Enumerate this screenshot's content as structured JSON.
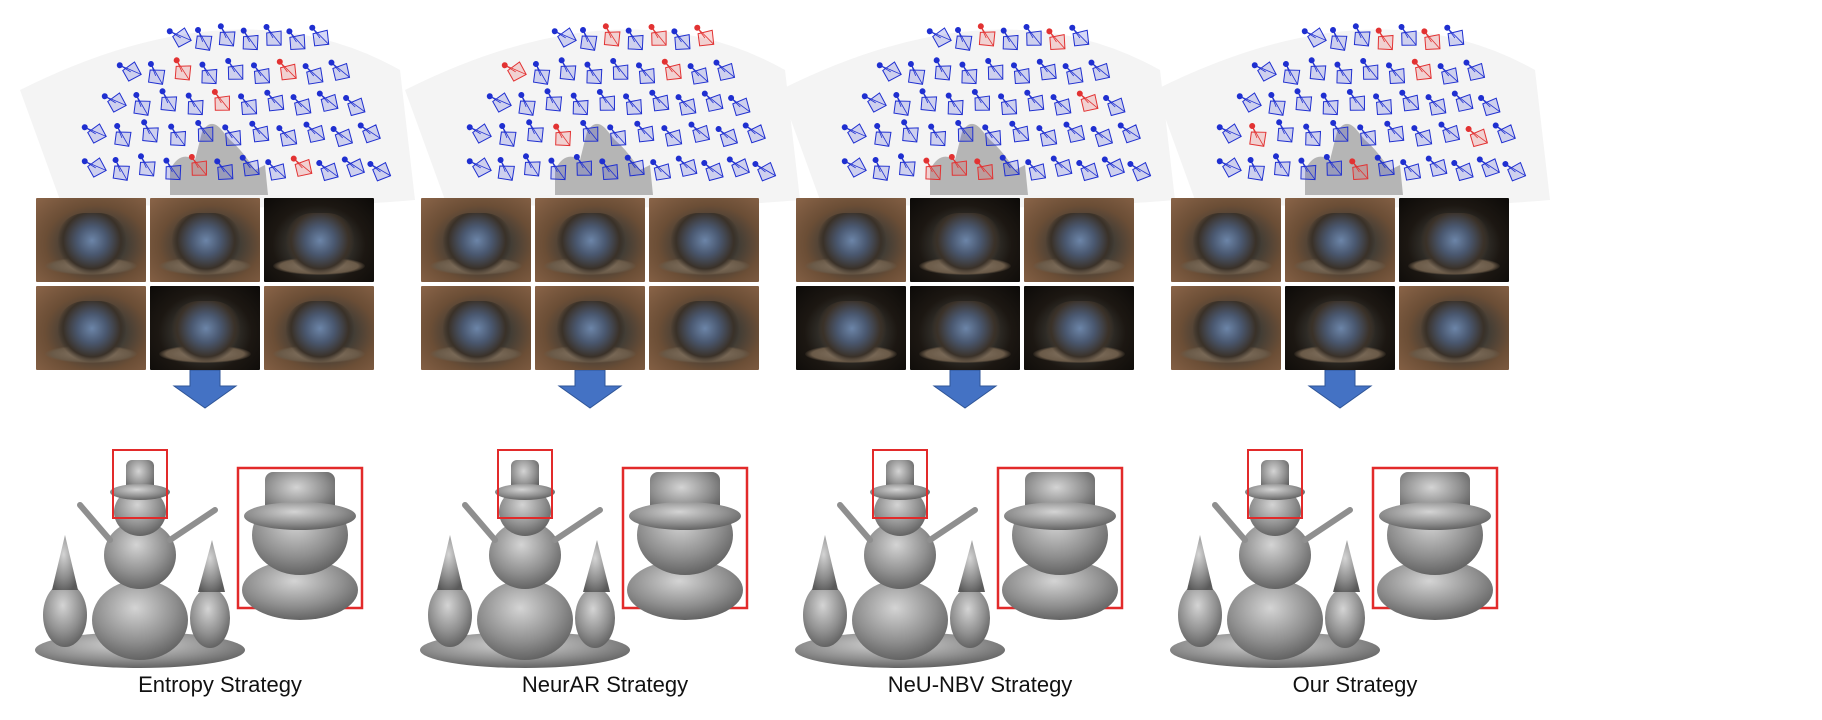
{
  "figure": {
    "panels": [
      {
        "caption": "Entropy Strategy"
      },
      {
        "caption": "NeurAR Strategy"
      },
      {
        "caption": "NeU-NBV Strategy"
      },
      {
        "caption": "Our Strategy"
      }
    ]
  },
  "colors": {
    "camera_unselected": "#1f2fd0",
    "camera_selected": "#e23232",
    "arrow": "#4472c4",
    "highlight_box": "#e22a2a",
    "mesh": "#8c8c8c"
  }
}
